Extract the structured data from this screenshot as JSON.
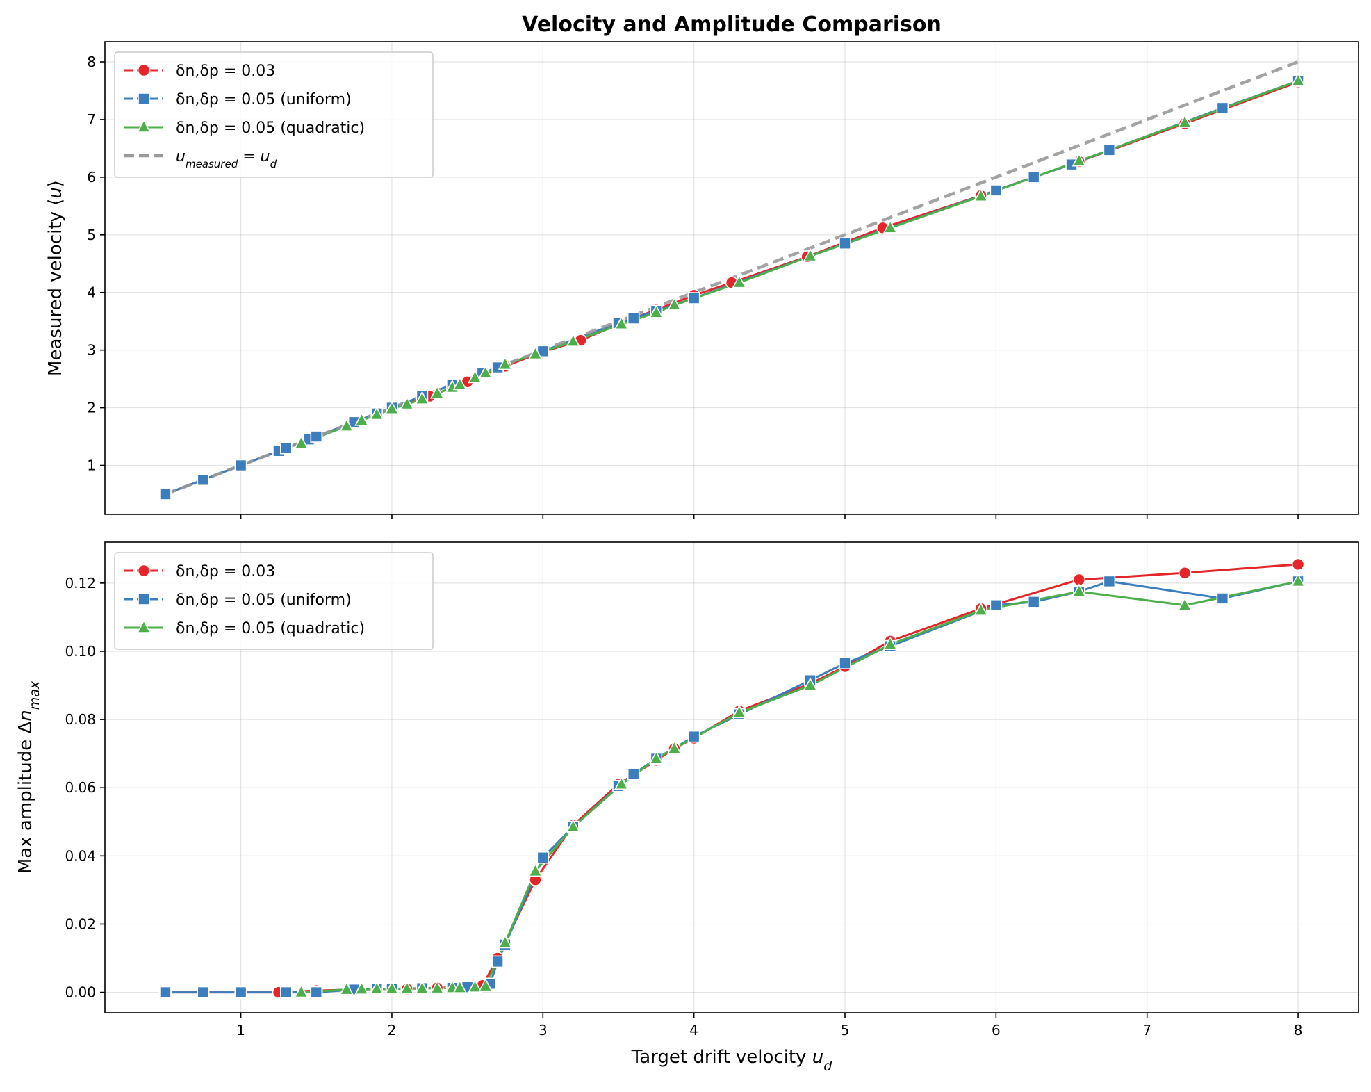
{
  "title": "Velocity and Amplitude Comparison",
  "colors": {
    "red": "#e4262a",
    "blue": "#3b7dbd",
    "green": "#4caf4a",
    "identity": "#999999"
  },
  "chart_data": [
    {
      "type": "line",
      "title": "Velocity and Amplitude Comparison",
      "xlabel": "Target drift velocity u_d",
      "ylabel": "Measured velocity ⟨u⟩",
      "xlim": [
        0.1,
        8.4
      ],
      "ylim": [
        0.15,
        8.35
      ],
      "xticks": [
        1,
        2,
        3,
        4,
        5,
        6,
        7,
        8
      ],
      "yticks": [
        1,
        2,
        3,
        4,
        5,
        6,
        7,
        8
      ],
      "ytick_labels": [
        "1",
        "2",
        "3",
        "4",
        "5",
        "6",
        "7",
        "8"
      ],
      "show_xtick_labels": false,
      "grid": true,
      "legend_position": "top-left",
      "series": [
        {
          "name": "δn,δp = 0.03",
          "marker": "circle",
          "color": "#e4262a",
          "x": [
            0.5,
            0.75,
            1.0,
            1.25,
            1.5,
            1.75,
            2.0,
            2.25,
            2.5,
            2.75,
            3.0,
            3.25,
            3.5,
            3.75,
            4.0,
            4.25,
            4.75,
            5.25,
            5.9,
            6.25,
            6.55,
            7.25,
            8.0
          ],
          "y": [
            0.5,
            0.75,
            1.0,
            1.25,
            1.5,
            1.75,
            2.0,
            2.2,
            2.45,
            2.72,
            2.97,
            3.17,
            3.45,
            3.7,
            3.95,
            4.17,
            4.62,
            5.12,
            5.68,
            6.0,
            6.27,
            6.93,
            7.65
          ]
        },
        {
          "name": "δn,δp = 0.05 (uniform)",
          "marker": "square",
          "color": "#3b7dbd",
          "x": [
            0.5,
            0.75,
            1.0,
            1.25,
            1.3,
            1.45,
            1.5,
            1.75,
            1.9,
            2.0,
            2.2,
            2.4,
            2.6,
            2.7,
            3.0,
            3.5,
            3.6,
            3.75,
            4.0,
            5.0,
            6.0,
            6.25,
            6.5,
            6.75,
            7.5,
            8.0
          ],
          "y": [
            0.5,
            0.75,
            1.0,
            1.25,
            1.3,
            1.45,
            1.5,
            1.75,
            1.9,
            2.0,
            2.2,
            2.4,
            2.6,
            2.7,
            2.98,
            3.47,
            3.55,
            3.68,
            3.9,
            4.85,
            5.77,
            6.0,
            6.22,
            6.47,
            7.2,
            7.67
          ]
        },
        {
          "name": "δn,δp = 0.05 (quadratic)",
          "marker": "triangle",
          "color": "#4caf4a",
          "x": [
            1.4,
            1.7,
            1.8,
            1.9,
            2.0,
            2.1,
            2.2,
            2.3,
            2.4,
            2.45,
            2.55,
            2.62,
            2.75,
            2.95,
            3.2,
            3.52,
            3.75,
            3.87,
            4.3,
            4.77,
            5.3,
            5.9,
            6.55,
            7.25,
            8.0
          ],
          "y": [
            1.38,
            1.68,
            1.78,
            1.88,
            1.98,
            2.06,
            2.15,
            2.25,
            2.35,
            2.4,
            2.52,
            2.6,
            2.75,
            2.93,
            3.15,
            3.45,
            3.65,
            3.78,
            4.17,
            4.63,
            5.12,
            5.67,
            6.28,
            6.95,
            7.67
          ]
        },
        {
          "name": "u_measured = u_d",
          "marker": "none",
          "color": "#999999",
          "x": [
            0.5,
            8.0
          ],
          "y": [
            0.5,
            8.0
          ]
        }
      ]
    },
    {
      "type": "line",
      "xlabel": "Target drift velocity u_d",
      "ylabel": "Max amplitude Δn_max",
      "xlim": [
        0.1,
        8.4
      ],
      "ylim": [
        -0.006,
        0.132
      ],
      "xticks": [
        1,
        2,
        3,
        4,
        5,
        6,
        7,
        8
      ],
      "xtick_labels": [
        "1",
        "2",
        "3",
        "4",
        "5",
        "6",
        "7",
        "8"
      ],
      "yticks": [
        0.0,
        0.02,
        0.04,
        0.06,
        0.08,
        0.1,
        0.12
      ],
      "ytick_labels": [
        "0.00",
        "0.02",
        "0.04",
        "0.06",
        "0.08",
        "0.10",
        "0.12"
      ],
      "grid": true,
      "legend_position": "top-left",
      "series": [
        {
          "name": "δn,δp = 0.03",
          "marker": "circle",
          "color": "#e4262a",
          "x": [
            0.5,
            0.75,
            1.0,
            1.25,
            1.5,
            1.75,
            2.0,
            2.1,
            2.2,
            2.3,
            2.4,
            2.5,
            2.6,
            2.7,
            2.95,
            3.2,
            3.5,
            3.75,
            3.87,
            4.0,
            4.3,
            4.77,
            5.0,
            5.3,
            5.9,
            6.55,
            7.25,
            8.0
          ],
          "y": [
            0.0,
            0.0,
            0.0,
            0.0,
            0.0005,
            0.0008,
            0.001,
            0.001,
            0.0012,
            0.0013,
            0.0015,
            0.0017,
            0.002,
            0.01,
            0.033,
            0.049,
            0.061,
            0.068,
            0.0715,
            0.0745,
            0.0825,
            0.0905,
            0.0955,
            0.103,
            0.1125,
            0.121,
            0.123,
            0.1255
          ]
        },
        {
          "name": "δn,δp = 0.05 (uniform)",
          "marker": "square",
          "color": "#3b7dbd",
          "x": [
            0.5,
            0.75,
            1.0,
            1.3,
            1.5,
            1.75,
            1.9,
            2.0,
            2.2,
            2.4,
            2.5,
            2.65,
            2.7,
            2.75,
            3.0,
            3.2,
            3.5,
            3.6,
            3.75,
            4.0,
            4.3,
            4.77,
            5.0,
            5.3,
            6.0,
            6.25,
            6.55,
            6.75,
            7.5,
            8.0
          ],
          "y": [
            0.0,
            0.0,
            0.0,
            0.0,
            0.0,
            0.0008,
            0.001,
            0.001,
            0.0012,
            0.0013,
            0.0015,
            0.0025,
            0.009,
            0.014,
            0.0395,
            0.0485,
            0.0605,
            0.064,
            0.0685,
            0.075,
            0.0815,
            0.0915,
            0.0965,
            0.1015,
            0.1135,
            0.1145,
            0.1175,
            0.1205,
            0.1155,
            0.1205
          ]
        },
        {
          "name": "δn,δp = 0.05 (quadratic)",
          "marker": "triangle",
          "color": "#4caf4a",
          "x": [
            1.4,
            1.7,
            1.8,
            1.9,
            2.0,
            2.1,
            2.2,
            2.3,
            2.4,
            2.45,
            2.55,
            2.62,
            2.75,
            2.95,
            3.2,
            3.52,
            3.75,
            3.87,
            4.3,
            4.77,
            5.3,
            5.9,
            6.55,
            7.25,
            8.0
          ],
          "y": [
            0.0,
            0.0008,
            0.0009,
            0.001,
            0.001,
            0.0011,
            0.0011,
            0.0012,
            0.0013,
            0.0013,
            0.0015,
            0.0018,
            0.0145,
            0.0355,
            0.0485,
            0.061,
            0.0685,
            0.0715,
            0.082,
            0.09,
            0.102,
            0.112,
            0.1175,
            0.1135,
            0.1205
          ]
        }
      ]
    }
  ]
}
